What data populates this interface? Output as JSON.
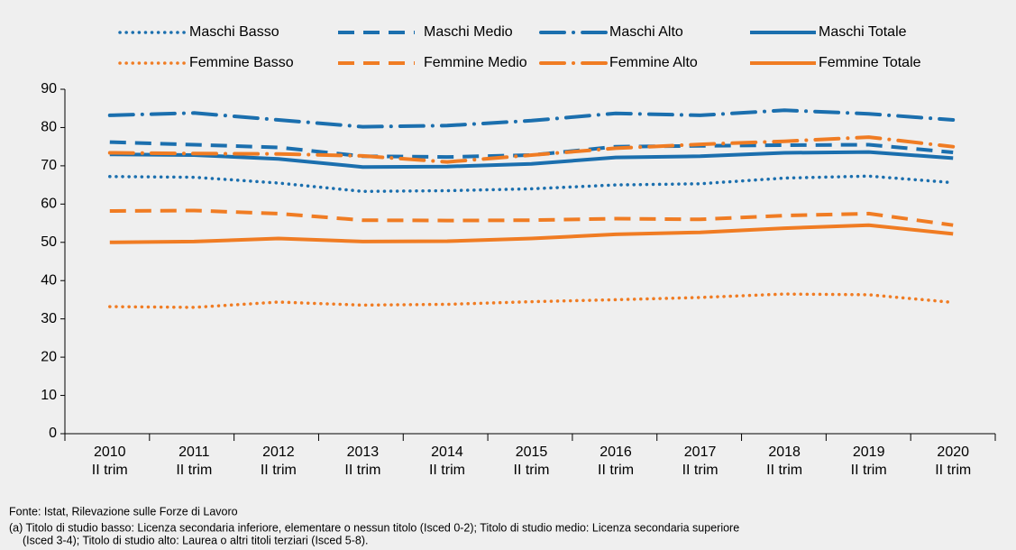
{
  "chart_data": {
    "type": "line",
    "categories": [
      [
        "2010",
        "II trim"
      ],
      [
        "2011",
        "II trim"
      ],
      [
        "2012",
        "II trim"
      ],
      [
        "2013",
        "II trim"
      ],
      [
        "2014",
        "II trim"
      ],
      [
        "2015",
        "II trim"
      ],
      [
        "2016",
        "II trim"
      ],
      [
        "2017",
        "II trim"
      ],
      [
        "2018",
        "II trim"
      ],
      [
        "2019",
        "II trim"
      ],
      [
        "2020",
        "II trim"
      ]
    ],
    "series": [
      {
        "name": "Maschi Basso",
        "color": "#1b6fae",
        "dash": "dotted",
        "values": [
          67.2,
          67,
          65.5,
          63.3,
          63.5,
          64,
          65,
          65.3,
          66.8,
          67.3,
          65.6
        ]
      },
      {
        "name": "Maschi Medio",
        "color": "#1b6fae",
        "dash": "dashed",
        "values": [
          76.2,
          75.5,
          74.8,
          72.5,
          72.3,
          72.8,
          75,
          75.2,
          75.4,
          75.5,
          73.5
        ]
      },
      {
        "name": "Maschi Alto",
        "color": "#1b6fae",
        "dash": "dashdot",
        "values": [
          83.2,
          83.8,
          82,
          80.2,
          80.5,
          81.8,
          83.7,
          83.2,
          84.5,
          83.6,
          82
        ]
      },
      {
        "name": "Maschi Totale",
        "color": "#1b6fae",
        "dash": "solid",
        "values": [
          73,
          72.8,
          71.8,
          69.7,
          69.8,
          70.5,
          72.2,
          72.5,
          73.4,
          73.6,
          72
        ]
      },
      {
        "name": "Femmine Basso",
        "color": "#f07c23",
        "dash": "dotted",
        "values": [
          33.2,
          33,
          34.4,
          33.6,
          33.8,
          34.5,
          35,
          35.6,
          36.5,
          36.3,
          34.3
        ]
      },
      {
        "name": "Femmine Medio",
        "color": "#f07c23",
        "dash": "dashed",
        "values": [
          58.2,
          58.3,
          57.5,
          55.8,
          55.7,
          55.8,
          56.2,
          56,
          57,
          57.5,
          54.5
        ]
      },
      {
        "name": "Femmine Alto",
        "color": "#f07c23",
        "dash": "dashdot",
        "values": [
          73.4,
          73.2,
          73.1,
          72.6,
          71,
          72.8,
          74.6,
          75.6,
          76.4,
          77.5,
          75
        ]
      },
      {
        "name": "Femmine Totale",
        "color": "#f07c23",
        "dash": "solid",
        "values": [
          50,
          50.2,
          51,
          50.2,
          50.3,
          51,
          52.1,
          52.6,
          53.7,
          54.5,
          52.2
        ]
      }
    ],
    "ylim": [
      0,
      90
    ],
    "yticks": [
      0,
      10,
      20,
      30,
      40,
      50,
      60,
      70,
      80,
      90
    ],
    "grid": false,
    "notes": [
      "Fonte: Istat, Rilevazione sulle Forze di Lavoro",
      "(a) Titolo di studio basso: Licenza secondaria inferiore, elementare o nessun titolo (Isced 0-2); Titolo di studio medio: Licenza secondaria superiore",
      "(Isced 3-4); Titolo di studio alto: Laurea o altri titoli terziari (Isced 5-8)."
    ]
  }
}
